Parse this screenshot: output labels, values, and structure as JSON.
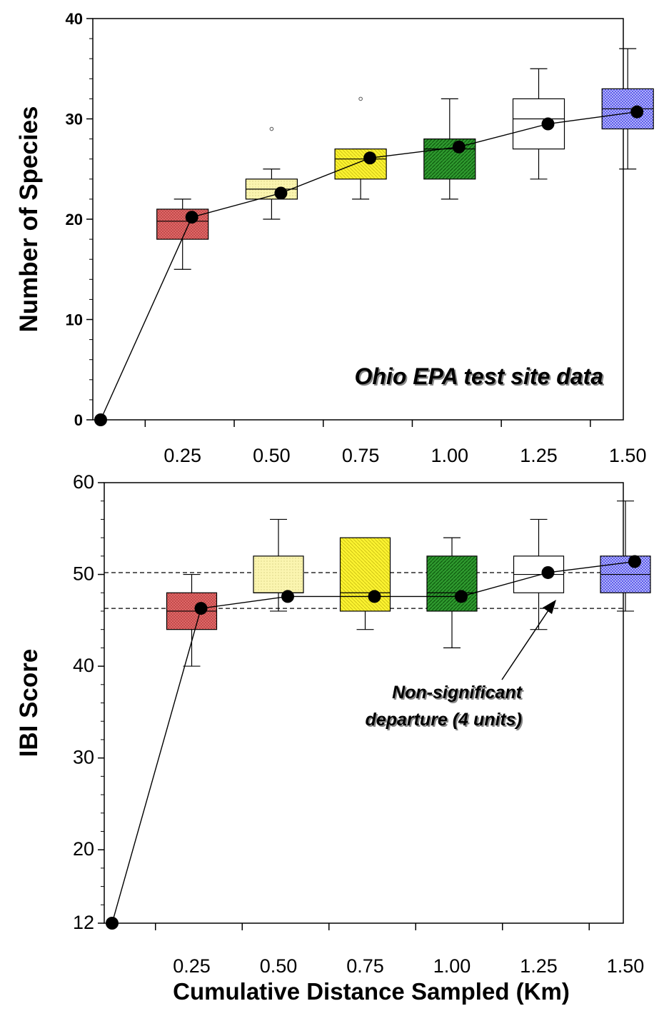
{
  "x_axis_label": "Cumulative Distance Sampled (Km)",
  "chart_data": [
    {
      "type": "box",
      "ylabel": "Number of Species",
      "ylim": [
        0,
        40
      ],
      "y_ticks": [
        "0",
        "10",
        "20",
        "30",
        "40"
      ],
      "categories": [
        "0.25",
        "0.50",
        "0.75",
        "1.00",
        "1.25",
        "1.50"
      ],
      "box_colors": [
        "#e36b6b",
        "#fbf5b0",
        "#fbf230",
        "#2f9a2f",
        "#ffffff",
        "#4a4ae8"
      ],
      "boxes": [
        {
          "label": "0.25",
          "q1": 18,
          "median": 19.8,
          "q3": 21,
          "whisker_low": 15,
          "whisker_high": 22,
          "outliers": []
        },
        {
          "label": "0.50",
          "q1": 22,
          "median": 23,
          "q3": 24,
          "whisker_low": 20,
          "whisker_high": 25,
          "outliers": [
            29
          ]
        },
        {
          "label": "0.75",
          "q1": 24,
          "median": 26,
          "q3": 27,
          "whisker_low": 22,
          "whisker_high": 27,
          "outliers": [
            32
          ]
        },
        {
          "label": "1.00",
          "q1": 24,
          "median": 27,
          "q3": 28,
          "whisker_low": 22,
          "whisker_high": 32,
          "outliers": []
        },
        {
          "label": "1.25",
          "q1": 27,
          "median": 30,
          "q3": 32,
          "whisker_low": 24,
          "whisker_high": 35,
          "outliers": []
        },
        {
          "label": "1.50",
          "q1": 29,
          "median": 31,
          "q3": 33,
          "whisker_low": 25,
          "whisker_high": 37,
          "outliers": []
        }
      ],
      "mean_line": {
        "x": [
          0,
          0.25,
          0.5,
          0.75,
          1.0,
          1.25,
          1.5
        ],
        "y": [
          0,
          20.2,
          22.6,
          26.1,
          27.2,
          29.5,
          30.7
        ]
      },
      "annotation": "Ohio EPA test site data"
    },
    {
      "type": "box",
      "ylabel": "IBI Score",
      "ylim": [
        12,
        60
      ],
      "y_ticks": [
        "12",
        "20",
        "30",
        "40",
        "50",
        "60"
      ],
      "y_tick_values": [
        12,
        20,
        30,
        40,
        50,
        60
      ],
      "categories": [
        "0.25",
        "0.50",
        "0.75",
        "1.00",
        "1.25",
        "1.50"
      ],
      "box_colors": [
        "#e36b6b",
        "#fbf5b0",
        "#fbf230",
        "#2f9a2f",
        "#ffffff",
        "#4a4ae8"
      ],
      "boxes": [
        {
          "label": "0.25",
          "q1": 44,
          "median": 46,
          "q3": 48,
          "whisker_low": 40,
          "whisker_high": 50
        },
        {
          "label": "0.50",
          "q1": 48,
          "median": 48,
          "q3": 52,
          "whisker_low": 46,
          "whisker_high": 56
        },
        {
          "label": "0.75",
          "q1": 46,
          "median": 48,
          "q3": 54,
          "whisker_low": 44,
          "whisker_high": 54
        },
        {
          "label": "1.00",
          "q1": 46,
          "median": 48,
          "q3": 52,
          "whisker_low": 42,
          "whisker_high": 54
        },
        {
          "label": "1.25",
          "q1": 48,
          "median": 50,
          "q3": 52,
          "whisker_low": 44,
          "whisker_high": 56
        },
        {
          "label": "1.50",
          "q1": 48,
          "median": 50,
          "q3": 52,
          "whisker_low": 46,
          "whisker_high": 58
        }
      ],
      "mean_line": {
        "x": [
          0,
          0.25,
          0.5,
          0.75,
          1.0,
          1.25,
          1.5
        ],
        "y": [
          12,
          46.3,
          47.6,
          47.6,
          47.6,
          50.2,
          51.4
        ]
      },
      "reference_lines": [
        50.2,
        46.3
      ],
      "annotation_lines": [
        "Non-significant",
        "departure (4 units)"
      ]
    }
  ]
}
